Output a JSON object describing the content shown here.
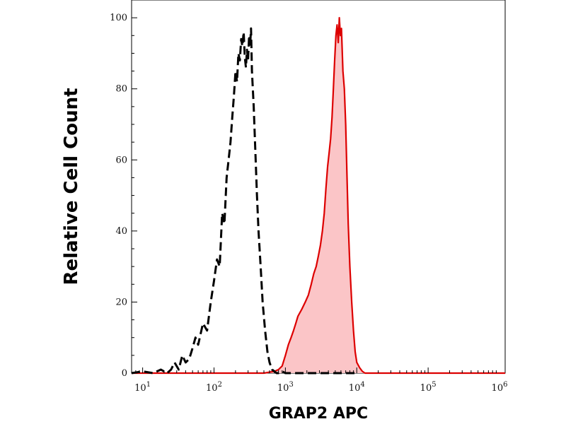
{
  "chart_data": {
    "type": "area",
    "title": "",
    "xlabel": "GRAP2 APC",
    "ylabel": "Relative Cell Count",
    "x_scale": "log",
    "xlim": [
      7,
      1200000
    ],
    "ylim": [
      0,
      105
    ],
    "grid": false,
    "legend": "none",
    "x_ticks": [
      {
        "value": 10,
        "base": "10",
        "exp": "1"
      },
      {
        "value": 100,
        "base": "10",
        "exp": "2"
      },
      {
        "value": 1000,
        "base": "10",
        "exp": "3"
      },
      {
        "value": 10000,
        "base": "10",
        "exp": "4"
      },
      {
        "value": 100000,
        "base": "10",
        "exp": "5"
      },
      {
        "value": 1000000,
        "base": "10",
        "exp": "6"
      }
    ],
    "y_ticks": [
      {
        "value": 0,
        "label": "0"
      },
      {
        "value": 20,
        "label": "20"
      },
      {
        "value": 40,
        "label": "40"
      },
      {
        "value": 60,
        "label": "60"
      },
      {
        "value": 80,
        "label": "80"
      },
      {
        "value": 100,
        "label": "100"
      }
    ],
    "series": [
      {
        "style": "dashed",
        "color": "#000000",
        "fill": "none",
        "x": [
          7,
          10,
          14,
          18,
          22,
          25,
          28,
          32,
          36,
          40,
          45,
          50,
          55,
          60,
          70,
          80,
          90,
          100,
          110,
          120,
          130,
          140,
          150,
          160,
          170,
          180,
          190,
          200,
          210,
          220,
          230,
          240,
          250,
          260,
          270,
          280,
          290,
          300,
          310,
          320,
          330,
          340,
          360,
          380,
          400,
          420,
          450,
          480,
          520,
          560,
          600,
          650,
          700,
          750,
          800,
          900,
          1000,
          1200,
          1500,
          2000,
          3000,
          5000,
          10000
        ],
        "y": [
          0,
          0.5,
          0,
          1,
          0,
          1,
          3,
          1,
          5,
          3,
          4,
          7,
          10,
          8,
          14,
          12,
          20,
          26,
          32,
          30,
          45,
          42,
          55,
          60,
          65,
          72,
          78,
          85,
          82,
          90,
          88,
          94,
          92,
          96,
          89,
          86,
          91,
          88,
          95,
          92,
          97,
          85,
          75,
          62,
          50,
          40,
          30,
          20,
          12,
          6,
          3,
          1,
          0.5,
          0,
          0,
          0.5,
          0,
          0,
          0,
          0,
          0,
          0,
          0
        ]
      },
      {
        "style": "solid",
        "color": "#dd0000",
        "fill": "#fbc5c7",
        "x": [
          7,
          100,
          500,
          700,
          800,
          900,
          1000,
          1100,
          1200,
          1300,
          1400,
          1500,
          1700,
          1900,
          2100,
          2300,
          2500,
          2700,
          2900,
          3100,
          3300,
          3500,
          3700,
          3900,
          4100,
          4300,
          4500,
          4700,
          4900,
          5100,
          5300,
          5500,
          5700,
          5900,
          6100,
          6400,
          6700,
          7000,
          7300,
          7600,
          8000,
          8500,
          9000,
          9500,
          10000,
          11000,
          12000,
          13000,
          14000,
          15000,
          17000,
          20000,
          50000,
          100000,
          1200000
        ],
        "y": [
          0,
          0,
          0,
          0.5,
          1,
          2,
          5,
          8,
          10,
          12,
          14,
          16,
          18,
          20,
          22,
          25,
          28,
          30,
          33,
          36,
          40,
          45,
          52,
          58,
          62,
          66,
          72,
          80,
          88,
          95,
          98,
          93,
          100,
          95,
          97,
          85,
          80,
          70,
          55,
          42,
          30,
          20,
          12,
          6,
          3,
          1.5,
          0.5,
          0,
          0,
          0,
          0,
          0,
          0,
          0,
          0
        ]
      }
    ]
  }
}
